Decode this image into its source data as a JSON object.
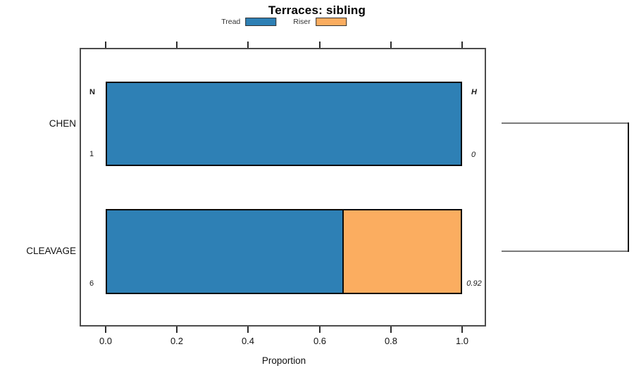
{
  "title": "Terraces: sibling",
  "legend": {
    "items": [
      {
        "label": "Tread",
        "color": "#2e80b5"
      },
      {
        "label": "Riser",
        "color": "#fbad60"
      }
    ]
  },
  "x_axis": {
    "label": "Proportion",
    "ticks": [
      "0.0",
      "0.2",
      "0.4",
      "0.6",
      "0.8",
      "1.0"
    ]
  },
  "column_headers": {
    "left": "N",
    "right": "H"
  },
  "rows": [
    {
      "label": "CHEN",
      "n": "1",
      "h": "0"
    },
    {
      "label": "CLEAVAGE",
      "n": "6",
      "h": "0.92"
    }
  ],
  "colors": {
    "tread": "#2e80b5",
    "riser": "#fbad60",
    "bar_border": "#0a0a0a",
    "box_border": "#4c4c4c",
    "dendrogram": "#7a7a7a"
  },
  "chart_data": {
    "type": "bar",
    "orientation": "horizontal",
    "stacked": true,
    "title": "Terraces: sibling",
    "categories": [
      "CHEN",
      "CLEAVAGE"
    ],
    "series": [
      {
        "name": "Tread",
        "values": [
          1.0,
          0.666
        ],
        "color": "#2e80b5"
      },
      {
        "name": "Riser",
        "values": [
          0.0,
          0.334
        ],
        "color": "#fbad60"
      }
    ],
    "annotations": {
      "N": [
        1,
        6
      ],
      "H": [
        0,
        0.92
      ]
    },
    "xlabel": "Proportion",
    "xlim": [
      0,
      1
    ],
    "xticks": [
      0.0,
      0.2,
      0.4,
      0.6,
      0.8,
      1.0
    ],
    "legend_position": "top",
    "grid": false,
    "extra": "right-side bracket (dendrogram) joining CHEN and CLEAVAGE rows"
  }
}
